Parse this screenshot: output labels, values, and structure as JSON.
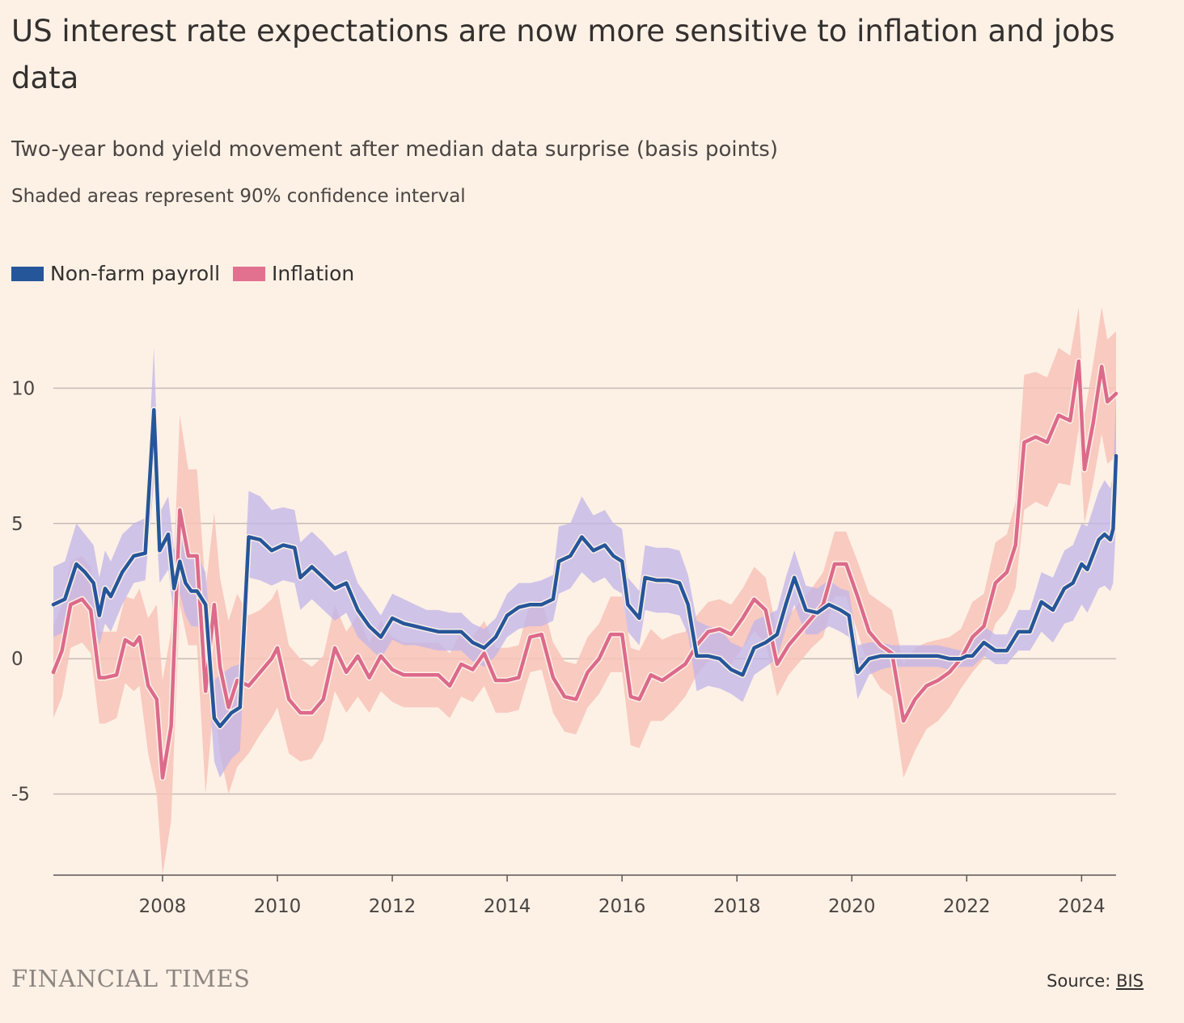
{
  "title": "US interest rate expectations are now more sensitive to inflation and jobs data",
  "subtitle": "Two-year bond yield movement after median data surprise (basis points)",
  "note": "Shaded areas represent 90% confidence interval",
  "legend": [
    {
      "label": "Non-farm payroll",
      "color": "#26569a"
    },
    {
      "label": "Inflation",
      "color": "#e1718f"
    }
  ],
  "brand": "FINANCIAL TIMES",
  "source": {
    "prefix": "Source: ",
    "link_text": "BIS"
  },
  "colors": {
    "payroll_line": "#26569a",
    "payroll_band": "#c3b6e8",
    "inflation_line": "#dc6a8b",
    "inflation_band": "#f8c3b7",
    "grid": "#c5bcb3",
    "axis": "#5c5652"
  },
  "chart_data": {
    "type": "line",
    "xlim": [
      2006.1,
      2024.6
    ],
    "ylim": [
      -8,
      13
    ],
    "y_ticks": [
      -5,
      0,
      5,
      10
    ],
    "y_tick_labels": [
      "-5",
      "0",
      "5",
      "10"
    ],
    "x_ticks": [
      2008,
      2010,
      2012,
      2014,
      2016,
      2018,
      2020,
      2022,
      2024
    ],
    "x_tick_labels": [
      "2008",
      "2010",
      "2012",
      "2014",
      "2016",
      "2018",
      "2020",
      "2022",
      "2024"
    ],
    "grid": true,
    "legend_position": "top-left",
    "series": [
      {
        "name": "Non-farm payroll",
        "x": [
          2006.1,
          2006.3,
          2006.5,
          2006.65,
          2006.8,
          2006.9,
          2007.0,
          2007.1,
          2007.3,
          2007.5,
          2007.7,
          2007.85,
          2007.95,
          2008.1,
          2008.2,
          2008.3,
          2008.4,
          2008.5,
          2008.6,
          2008.75,
          2008.9,
          2009.0,
          2009.2,
          2009.35,
          2009.5,
          2009.7,
          2009.9,
          2010.1,
          2010.3,
          2010.4,
          2010.6,
          2010.8,
          2011.0,
          2011.2,
          2011.4,
          2011.6,
          2011.8,
          2012.0,
          2012.2,
          2012.4,
          2012.6,
          2012.8,
          2013.0,
          2013.2,
          2013.4,
          2013.6,
          2013.8,
          2014.0,
          2014.2,
          2014.4,
          2014.6,
          2014.8,
          2014.9,
          2015.1,
          2015.3,
          2015.5,
          2015.7,
          2015.85,
          2016.0,
          2016.1,
          2016.3,
          2016.4,
          2016.6,
          2016.8,
          2017.0,
          2017.15,
          2017.3,
          2017.5,
          2017.7,
          2017.9,
          2018.1,
          2018.3,
          2018.5,
          2018.7,
          2018.85,
          2019.0,
          2019.2,
          2019.4,
          2019.6,
          2019.8,
          2019.95,
          2020.1,
          2020.3,
          2020.5,
          2020.7,
          2020.9,
          2021.1,
          2021.3,
          2021.5,
          2021.7,
          2021.9,
          2022.0,
          2022.1,
          2022.3,
          2022.5,
          2022.7,
          2022.9,
          2023.1,
          2023.3,
          2023.5,
          2023.7,
          2023.85,
          2024.0,
          2024.1,
          2024.3,
          2024.4,
          2024.5,
          2024.55,
          2024.6
        ],
        "y": [
          2.0,
          2.2,
          3.5,
          3.2,
          2.8,
          1.6,
          2.6,
          2.3,
          3.2,
          3.8,
          3.9,
          9.2,
          4.0,
          4.6,
          2.6,
          3.6,
          2.8,
          2.5,
          2.5,
          2.0,
          -2.2,
          -2.5,
          -2.0,
          -1.8,
          4.5,
          4.4,
          4.0,
          4.2,
          4.1,
          3.0,
          3.4,
          3.0,
          2.6,
          2.8,
          1.8,
          1.2,
          0.8,
          1.5,
          1.3,
          1.2,
          1.1,
          1.0,
          1.0,
          1.0,
          0.6,
          0.4,
          0.8,
          1.6,
          1.9,
          2.0,
          2.0,
          2.2,
          3.6,
          3.8,
          4.5,
          4.0,
          4.2,
          3.8,
          3.6,
          2.0,
          1.5,
          3.0,
          2.9,
          2.9,
          2.8,
          2.0,
          0.1,
          0.1,
          0.0,
          -0.4,
          -0.6,
          0.4,
          0.6,
          0.9,
          2.0,
          3.0,
          1.8,
          1.7,
          2.0,
          1.8,
          1.6,
          -0.5,
          0.0,
          0.1,
          0.1,
          0.1,
          0.1,
          0.1,
          0.1,
          0.0,
          0.0,
          0.1,
          0.1,
          0.6,
          0.3,
          0.3,
          1.0,
          1.0,
          2.1,
          1.8,
          2.6,
          2.8,
          3.5,
          3.3,
          4.4,
          4.6,
          4.4,
          4.8,
          7.5
        ],
        "lower": [
          0.8,
          1.0,
          2.2,
          2.0,
          1.5,
          0.5,
          1.3,
          1.0,
          2.0,
          2.8,
          2.9,
          6.5,
          2.8,
          3.3,
          1.5,
          2.4,
          1.6,
          1.2,
          1.2,
          0.7,
          -3.8,
          -4.4,
          -3.7,
          -3.4,
          3.0,
          2.9,
          2.7,
          2.9,
          2.8,
          1.8,
          2.2,
          1.8,
          1.4,
          1.7,
          0.8,
          0.4,
          0.0,
          0.7,
          0.5,
          0.5,
          0.4,
          0.3,
          0.3,
          0.3,
          -0.1,
          -0.3,
          0.1,
          0.8,
          1.1,
          1.2,
          1.2,
          1.4,
          2.4,
          2.6,
          3.2,
          2.8,
          3.0,
          2.6,
          2.4,
          1.0,
          0.5,
          1.8,
          1.7,
          1.7,
          1.6,
          0.9,
          -1.2,
          -1.0,
          -1.1,
          -1.3,
          -1.6,
          -0.6,
          -0.3,
          0.0,
          1.1,
          2.0,
          0.9,
          0.9,
          1.2,
          1.0,
          0.8,
          -1.5,
          -0.6,
          -0.4,
          -0.3,
          -0.3,
          -0.3,
          -0.3,
          -0.3,
          -0.4,
          -0.3,
          -0.3,
          -0.3,
          0.1,
          -0.2,
          -0.2,
          0.3,
          0.3,
          1.0,
          0.6,
          1.3,
          1.4,
          2.0,
          1.7,
          2.6,
          2.7,
          2.5,
          2.8,
          5.0
        ],
        "upper": [
          3.4,
          3.6,
          5.0,
          4.6,
          4.2,
          3.0,
          4.0,
          3.6,
          4.6,
          5.0,
          5.2,
          11.5,
          5.4,
          6.0,
          4.0,
          5.0,
          4.2,
          3.8,
          3.8,
          3.2,
          -0.8,
          -0.6,
          -0.3,
          -0.2,
          6.2,
          6.0,
          5.5,
          5.6,
          5.5,
          4.3,
          4.7,
          4.3,
          3.8,
          4.0,
          2.8,
          2.2,
          1.6,
          2.4,
          2.2,
          2.0,
          1.8,
          1.8,
          1.7,
          1.7,
          1.3,
          1.1,
          1.5,
          2.4,
          2.8,
          2.8,
          2.9,
          3.1,
          4.9,
          5.0,
          6.0,
          5.3,
          5.5,
          5.0,
          4.8,
          3.0,
          2.5,
          4.2,
          4.1,
          4.1,
          4.0,
          3.1,
          1.4,
          1.2,
          1.1,
          0.6,
          0.4,
          1.4,
          1.6,
          1.8,
          3.0,
          4.0,
          2.7,
          2.6,
          2.9,
          2.6,
          2.5,
          0.5,
          0.6,
          0.6,
          0.5,
          0.5,
          0.5,
          0.5,
          0.5,
          0.4,
          0.3,
          0.5,
          0.6,
          1.2,
          0.9,
          0.9,
          1.8,
          1.8,
          3.2,
          3.0,
          4.0,
          4.2,
          5.0,
          4.9,
          6.2,
          6.6,
          6.3,
          6.8,
          9.8
        ]
      },
      {
        "name": "Inflation",
        "x": [
          2006.1,
          2006.25,
          2006.4,
          2006.6,
          2006.75,
          2006.9,
          2007.0,
          2007.2,
          2007.35,
          2007.5,
          2007.6,
          2007.75,
          2007.9,
          2008.0,
          2008.15,
          2008.3,
          2008.45,
          2008.6,
          2008.75,
          2008.9,
          2009.0,
          2009.15,
          2009.3,
          2009.5,
          2009.7,
          2009.9,
          2010.0,
          2010.2,
          2010.4,
          2010.6,
          2010.8,
          2011.0,
          2011.2,
          2011.4,
          2011.6,
          2011.8,
          2012.0,
          2012.2,
          2012.4,
          2012.6,
          2012.8,
          2013.0,
          2013.2,
          2013.4,
          2013.6,
          2013.8,
          2014.0,
          2014.2,
          2014.4,
          2014.6,
          2014.8,
          2015.0,
          2015.2,
          2015.4,
          2015.6,
          2015.8,
          2016.0,
          2016.15,
          2016.3,
          2016.5,
          2016.7,
          2016.9,
          2017.1,
          2017.3,
          2017.5,
          2017.7,
          2017.9,
          2018.1,
          2018.3,
          2018.5,
          2018.7,
          2018.9,
          2019.1,
          2019.3,
          2019.5,
          2019.7,
          2019.9,
          2020.1,
          2020.3,
          2020.5,
          2020.7,
          2020.9,
          2021.1,
          2021.3,
          2021.5,
          2021.7,
          2021.9,
          2022.1,
          2022.3,
          2022.5,
          2022.7,
          2022.85,
          2023.0,
          2023.2,
          2023.4,
          2023.6,
          2023.8,
          2023.95,
          2024.05,
          2024.2,
          2024.35,
          2024.45,
          2024.6
        ],
        "y": [
          -0.5,
          0.3,
          2.0,
          2.2,
          1.8,
          -0.7,
          -0.7,
          -0.6,
          0.7,
          0.5,
          0.8,
          -1.0,
          -1.5,
          -4.4,
          -2.5,
          5.5,
          3.8,
          3.8,
          -1.2,
          2.0,
          -0.3,
          -1.8,
          -0.8,
          -1.0,
          -0.5,
          0.0,
          0.4,
          -1.5,
          -2.0,
          -2.0,
          -1.5,
          0.4,
          -0.5,
          0.1,
          -0.7,
          0.1,
          -0.4,
          -0.6,
          -0.6,
          -0.6,
          -0.6,
          -1.0,
          -0.2,
          -0.4,
          0.2,
          -0.8,
          -0.8,
          -0.7,
          0.8,
          0.9,
          -0.7,
          -1.4,
          -1.5,
          -0.5,
          0.0,
          0.9,
          0.9,
          -1.4,
          -1.5,
          -0.6,
          -0.8,
          -0.5,
          -0.2,
          0.5,
          1.0,
          1.1,
          0.9,
          1.5,
          2.2,
          1.8,
          -0.2,
          0.5,
          1.0,
          1.5,
          2.0,
          3.5,
          3.5,
          2.3,
          1.0,
          0.5,
          0.2,
          -2.3,
          -1.5,
          -1.0,
          -0.8,
          -0.5,
          0.0,
          0.8,
          1.2,
          2.8,
          3.2,
          4.2,
          8.0,
          8.2,
          8.0,
          9.0,
          8.8,
          11.0,
          7.0,
          8.7,
          10.8,
          9.5,
          9.8
        ],
        "lower": [
          -2.2,
          -1.4,
          0.4,
          0.6,
          0.2,
          -2.4,
          -2.4,
          -2.2,
          -0.9,
          -1.2,
          -1.0,
          -3.5,
          -5.0,
          -8.0,
          -6.0,
          2.0,
          0.5,
          0.5,
          -5.0,
          -1.5,
          -3.5,
          -5.0,
          -4.0,
          -3.5,
          -2.8,
          -2.2,
          -1.8,
          -3.5,
          -3.8,
          -3.7,
          -3.0,
          -1.2,
          -2.0,
          -1.4,
          -2.0,
          -1.2,
          -1.6,
          -1.8,
          -1.8,
          -1.8,
          -1.8,
          -2.2,
          -1.4,
          -1.6,
          -1.0,
          -2.0,
          -2.0,
          -1.9,
          -0.5,
          -0.4,
          -2.0,
          -2.7,
          -2.8,
          -1.8,
          -1.3,
          -0.5,
          -0.5,
          -3.2,
          -3.3,
          -2.3,
          -2.3,
          -1.9,
          -1.4,
          -0.6,
          -0.1,
          0.0,
          -0.2,
          0.4,
          1.0,
          0.6,
          -1.4,
          -0.6,
          -0.1,
          0.4,
          0.8,
          2.3,
          2.3,
          1.0,
          -0.4,
          -1.1,
          -1.4,
          -4.4,
          -3.4,
          -2.6,
          -2.3,
          -1.8,
          -1.1,
          -0.5,
          0.0,
          1.3,
          1.8,
          2.6,
          5.5,
          5.8,
          5.6,
          6.5,
          6.4,
          8.5,
          5.0,
          6.5,
          8.3,
          7.2,
          7.5
        ],
        "upper": [
          1.2,
          2.0,
          3.6,
          3.8,
          3.4,
          1.0,
          1.0,
          1.0,
          2.3,
          2.2,
          2.6,
          1.5,
          2.0,
          -0.8,
          1.0,
          9.0,
          7.0,
          7.0,
          2.6,
          5.4,
          3.0,
          1.4,
          2.4,
          1.6,
          1.8,
          2.2,
          2.6,
          0.5,
          0.0,
          -0.3,
          0.1,
          2.0,
          1.0,
          1.6,
          0.6,
          1.4,
          0.8,
          0.6,
          0.6,
          0.6,
          0.6,
          0.2,
          1.0,
          0.8,
          1.4,
          0.4,
          0.4,
          0.5,
          2.1,
          2.2,
          0.6,
          -0.1,
          -0.2,
          0.8,
          1.3,
          2.3,
          2.3,
          0.4,
          0.3,
          1.1,
          0.7,
          0.9,
          1.0,
          1.6,
          2.1,
          2.2,
          2.0,
          2.6,
          3.4,
          3.0,
          1.0,
          1.6,
          2.1,
          2.6,
          3.2,
          4.7,
          4.7,
          3.6,
          2.4,
          2.1,
          1.8,
          -0.2,
          0.4,
          0.6,
          0.7,
          0.8,
          1.1,
          2.1,
          2.4,
          4.3,
          4.6,
          5.8,
          10.5,
          10.6,
          10.4,
          11.5,
          11.2,
          13.0,
          9.0,
          10.9,
          13.0,
          11.8,
          12.1
        ]
      }
    ]
  }
}
